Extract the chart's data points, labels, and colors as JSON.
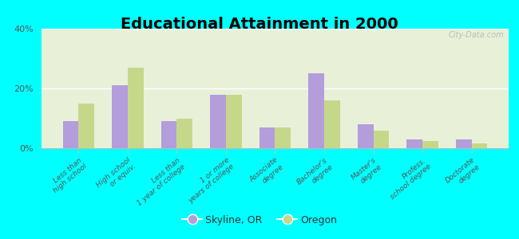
{
  "title": "Educational Attainment in 2000",
  "categories": [
    "Less than\nhigh school",
    "High school\nor equiv.",
    "Less than\n1 year of college",
    "1 or more\nyears of college",
    "Associate\ndegree",
    "Bachelor's\ndegree",
    "Master's\ndegree",
    "Profess.\nschool degree",
    "Doctorate\ndegree"
  ],
  "skyline_values": [
    9,
    21,
    9,
    18,
    7,
    25,
    8,
    3,
    3
  ],
  "oregon_values": [
    15,
    27,
    10,
    18,
    7,
    16,
    6,
    2.5,
    1.5
  ],
  "skyline_color": "#b39ddb",
  "oregon_color": "#c5d88a",
  "background_color": "#00ffff",
  "plot_bg_top": "#e8f0d8",
  "plot_bg_bottom": "#f5f8ee",
  "ylim": [
    0,
    40
  ],
  "yticks": [
    0,
    20,
    40
  ],
  "ytick_labels": [
    "0%",
    "20%",
    "40%"
  ],
  "bar_width": 0.32,
  "legend_labels": [
    "Skyline, OR",
    "Oregon"
  ],
  "title_fontsize": 14,
  "tick_fontsize": 6.5,
  "legend_fontsize": 9,
  "watermark": "City-Data.com"
}
